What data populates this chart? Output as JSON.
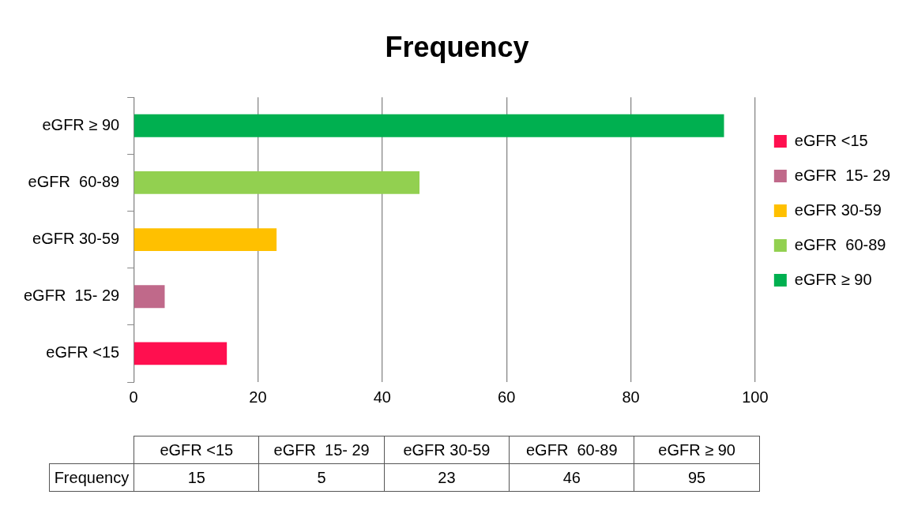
{
  "chart_data": {
    "type": "bar",
    "orientation": "horizontal",
    "title": "Frequency",
    "stacked": true,
    "categories": [
      "eGFR ≥ 90",
      "eGFR  60-89",
      "eGFR 30-59",
      "eGFR  15- 29",
      "eGFR <15"
    ],
    "series": [
      {
        "name": "eGFR <15",
        "color": "#ff0f4f",
        "values": [
          null,
          null,
          null,
          null,
          15
        ]
      },
      {
        "name": "eGFR  15- 29",
        "color": "#c0698a",
        "values": [
          null,
          null,
          null,
          5,
          null
        ]
      },
      {
        "name": "eGFR 30-59",
        "color": "#ffc000",
        "values": [
          null,
          null,
          23,
          null,
          null
        ]
      },
      {
        "name": "eGFR  60-89",
        "color": "#92d050",
        "values": [
          null,
          46,
          null,
          null,
          null
        ]
      },
      {
        "name": "eGFR ≥ 90",
        "color": "#00b050",
        "values": [
          95,
          null,
          null,
          null,
          null
        ]
      }
    ],
    "xlim": [
      0,
      100
    ],
    "xticks": [
      0,
      20,
      40,
      60,
      80,
      100
    ],
    "grid": "x",
    "legend": "right",
    "annotations": [
      "Frequency",
      "15",
      "5",
      "23",
      "46",
      "95"
    ]
  }
}
